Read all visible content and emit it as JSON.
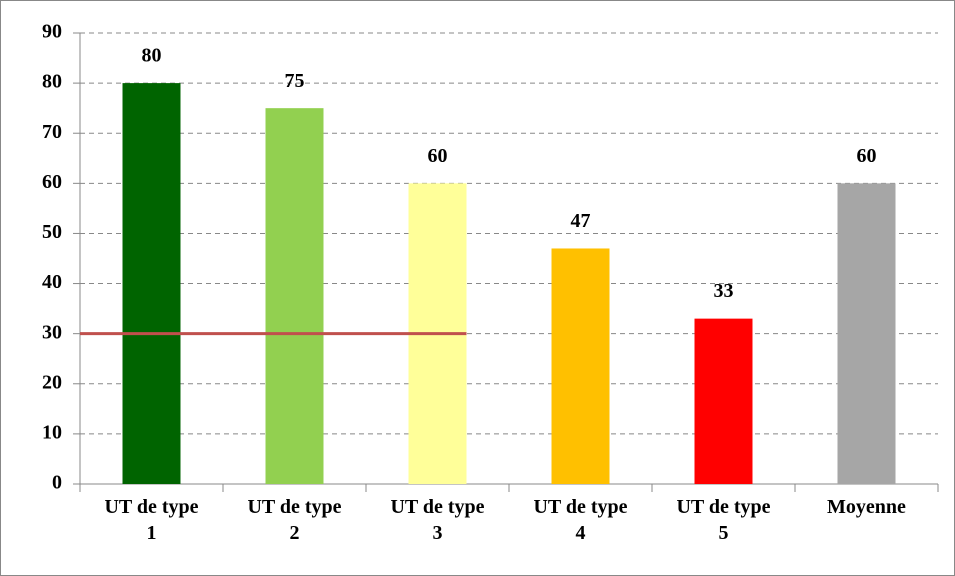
{
  "chart_data": {
    "type": "bar",
    "categories": [
      "UT de type 1",
      "UT de type 2",
      "UT de type 3",
      "UT de type 4",
      "UT de type 5",
      "Moyenne"
    ],
    "values": [
      80,
      75,
      60,
      47,
      33,
      60
    ],
    "colors": [
      "#006400",
      "#92d050",
      "#ffff99",
      "#ffc000",
      "#ff0000",
      "#a6a6a6"
    ],
    "ylim": [
      0,
      90
    ],
    "yticks": [
      0,
      10,
      20,
      30,
      40,
      50,
      60,
      70,
      80,
      90
    ],
    "grid": true,
    "reference_line": {
      "value": 30,
      "color": "#c0504d"
    }
  }
}
